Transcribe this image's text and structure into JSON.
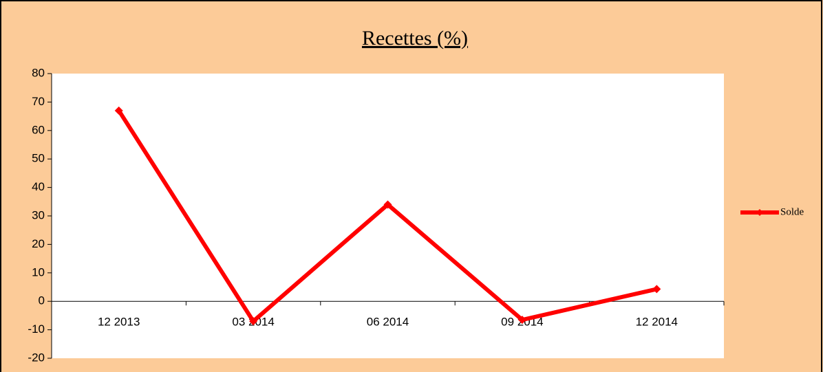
{
  "chart_data": {
    "type": "line",
    "title": "Recettes (%)",
    "categories": [
      "12 2013",
      "03 2014",
      "06 2014",
      "09 2014",
      "12 2014"
    ],
    "series": [
      {
        "name": "Solde",
        "color": "#ff0000",
        "values": [
          67,
          -7,
          34,
          -6.5,
          4.3
        ]
      }
    ],
    "ylim": [
      -20,
      80
    ],
    "yticks": [
      -20,
      -10,
      0,
      10,
      20,
      30,
      40,
      50,
      60,
      70,
      80
    ],
    "grid": false,
    "legend": "right"
  }
}
